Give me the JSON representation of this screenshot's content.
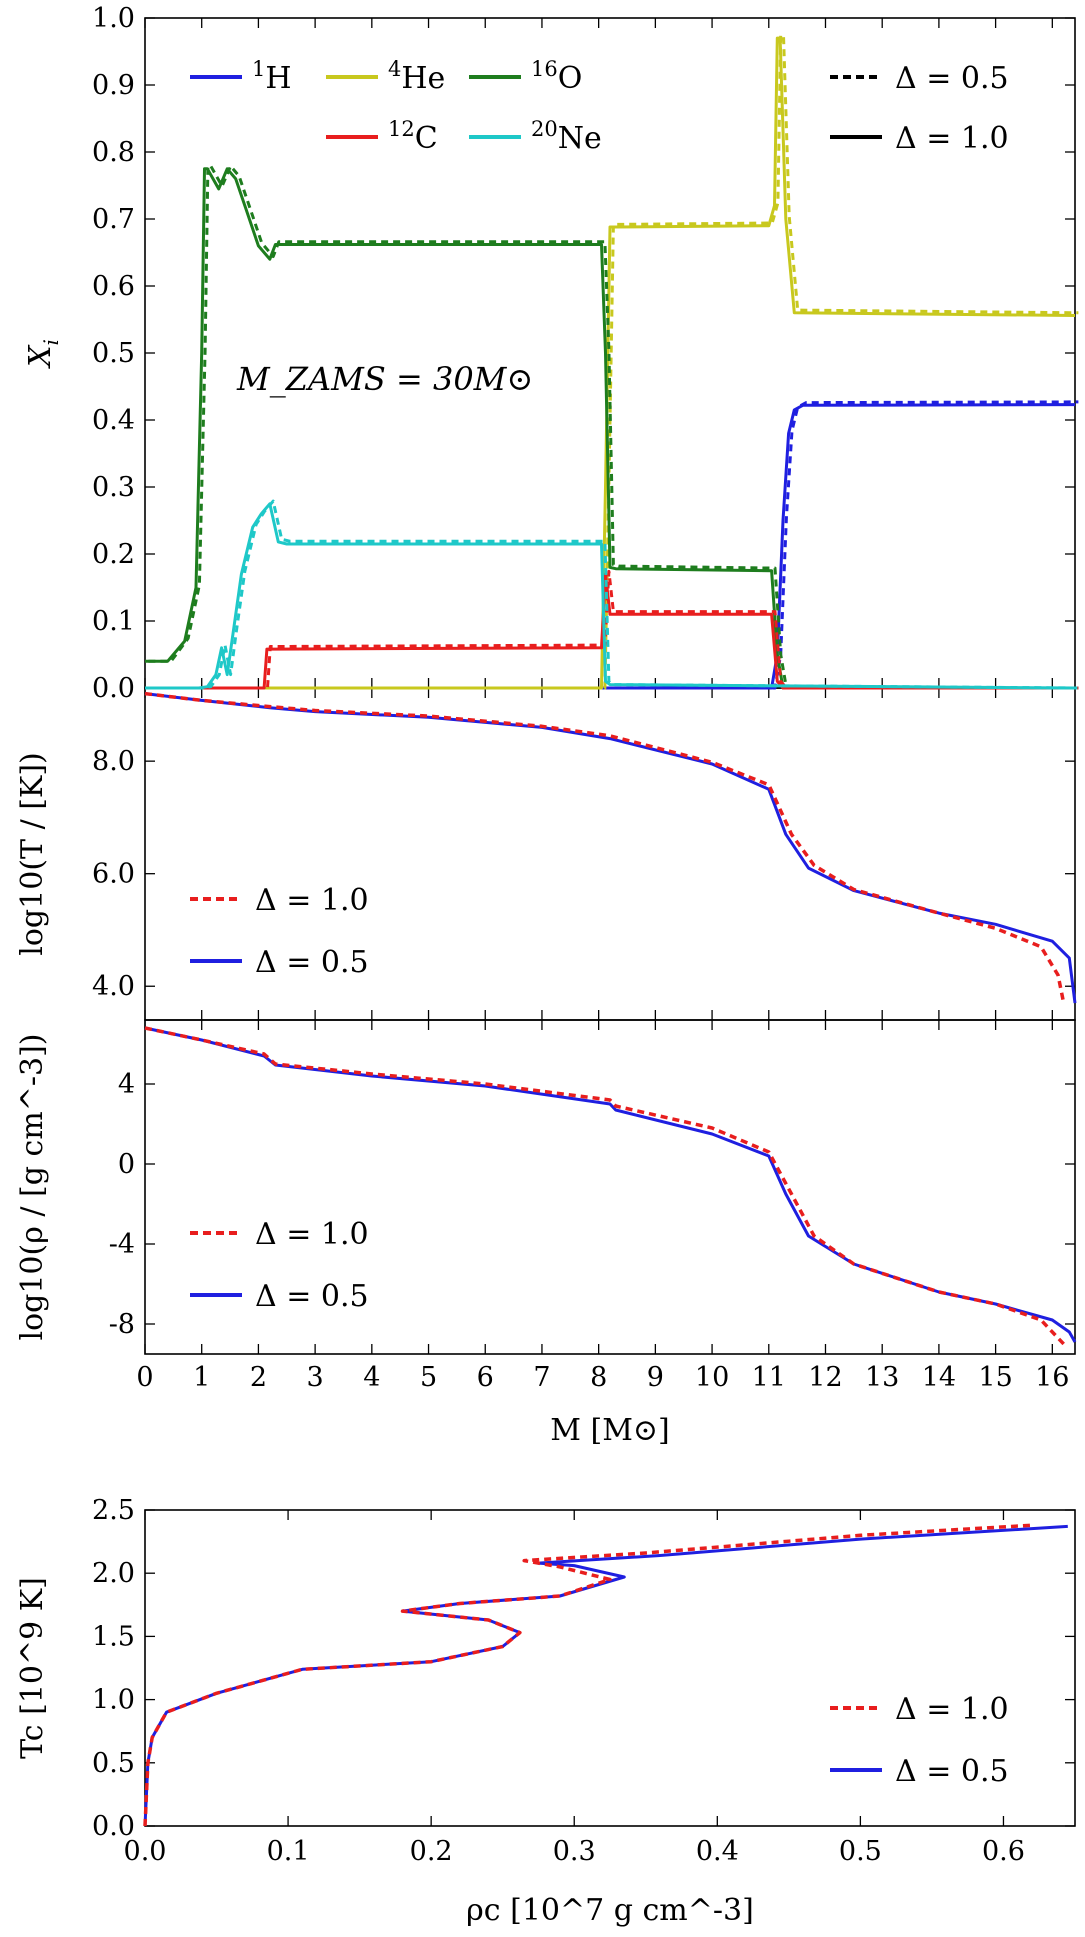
{
  "chart_data": [
    {
      "type": "line",
      "title": "",
      "xlabel": "M [M⊙]",
      "ylabel": "X_i",
      "xlim": [
        0,
        16.4
      ],
      "ylim": [
        0.0,
        1.0
      ],
      "yticks": [
        "0.0",
        "0.1",
        "0.2",
        "0.3",
        "0.4",
        "0.5",
        "0.6",
        "0.7",
        "0.8",
        "0.9",
        "1.0"
      ],
      "annotation": "M_ZAMS = 30M⊙",
      "legend_species": [
        {
          "sup": "1",
          "name": "H",
          "color": "#1f1fe0"
        },
        {
          "sup": "4",
          "name": "He",
          "color": "#c8c81e"
        },
        {
          "sup": "16",
          "name": "O",
          "color": "#1e7d1e"
        },
        {
          "sup": "12",
          "name": "C",
          "color": "#e81e1e"
        },
        {
          "sup": "20",
          "name": "Ne",
          "color": "#1ec8c8"
        }
      ],
      "legend_styles": [
        {
          "label": "Δ = 0.5",
          "style": "dashed",
          "color": "#000000"
        },
        {
          "label": "Δ = 1.0",
          "style": "solid",
          "color": "#000000"
        }
      ],
      "series": [
        {
          "name": "1H",
          "color": "#1f1fe0",
          "x": [
            0,
            11.05,
            11.15,
            11.25,
            11.35,
            11.45,
            11.6,
            16.4
          ],
          "y": [
            0,
            0,
            0.05,
            0.25,
            0.38,
            0.415,
            0.422,
            0.423
          ]
        },
        {
          "name": "4He",
          "color": "#c8c81e",
          "x": [
            0,
            8.05,
            8.12,
            8.2,
            8.3,
            11.0,
            11.1,
            11.15,
            11.2,
            11.3,
            11.45,
            16.4
          ],
          "y": [
            0,
            0,
            0.3,
            0.688,
            0.688,
            0.69,
            0.72,
            0.97,
            0.97,
            0.7,
            0.56,
            0.556
          ]
        },
        {
          "name": "16O",
          "color": "#1e7d1e",
          "x": [
            0,
            0.4,
            0.7,
            0.9,
            1.0,
            1.05,
            1.1,
            1.3,
            1.45,
            1.6,
            1.8,
            2.0,
            2.2,
            2.3,
            2.5,
            8.05,
            8.12,
            8.2,
            8.3,
            11.05,
            11.15,
            11.25,
            16.4
          ],
          "y": [
            0.04,
            0.04,
            0.07,
            0.15,
            0.5,
            0.775,
            0.775,
            0.745,
            0.775,
            0.76,
            0.71,
            0.66,
            0.64,
            0.662,
            0.662,
            0.662,
            0.5,
            0.18,
            0.178,
            0.175,
            0.05,
            0,
            0
          ]
        },
        {
          "name": "12C",
          "color": "#e81e1e",
          "x": [
            0,
            2.1,
            2.15,
            2.3,
            8.05,
            8.12,
            8.2,
            8.3,
            11.05,
            11.15,
            11.25,
            16.4
          ],
          "y": [
            0,
            0,
            0.058,
            0.058,
            0.06,
            0.17,
            0.11,
            0.11,
            0.11,
            0.01,
            0,
            0
          ]
        },
        {
          "name": "20Ne",
          "color": "#1ec8c8",
          "x": [
            0,
            0.95,
            1.1,
            1.25,
            1.35,
            1.45,
            1.55,
            1.7,
            1.9,
            2.05,
            2.2,
            2.35,
            2.5,
            8.05,
            8.12,
            8.2,
            16.4
          ],
          "y": [
            0,
            0,
            0.002,
            0.02,
            0.06,
            0.02,
            0.08,
            0.17,
            0.24,
            0.26,
            0.275,
            0.218,
            0.215,
            0.215,
            0.01,
            0.005,
            0
          ]
        }
      ]
    },
    {
      "type": "line",
      "xlabel": "M [M⊙]",
      "ylabel": "log10(T / [K])",
      "xlim": [
        0,
        16.4
      ],
      "ylim": [
        3.4,
        9.3
      ],
      "yticks": [
        "4.0",
        "6.0",
        "8.0"
      ],
      "legend": [
        {
          "label": "Δ = 1.0",
          "style": "dashed",
          "color": "#e81e1e"
        },
        {
          "label": "Δ = 0.5",
          "style": "solid",
          "color": "#1f1fe0"
        }
      ],
      "series": [
        {
          "name": "Δ = 1.0",
          "color": "#e81e1e",
          "x": [
            0,
            1,
            2.2,
            3,
            5,
            7,
            8.2,
            10,
            11,
            11.4,
            11.8,
            12.5,
            14,
            15,
            15.8,
            16.1,
            16.2
          ],
          "y": [
            9.2,
            9.08,
            8.97,
            8.9,
            8.8,
            8.62,
            8.45,
            7.98,
            7.58,
            6.7,
            6.15,
            5.72,
            5.3,
            5.03,
            4.7,
            4.2,
            3.7
          ]
        },
        {
          "name": "Δ = 0.5",
          "color": "#1f1fe0",
          "x": [
            0,
            1,
            2.2,
            3,
            5,
            7,
            8.2,
            10,
            11,
            11.3,
            11.7,
            12.5,
            14,
            15,
            16,
            16.3,
            16.4
          ],
          "y": [
            9.2,
            9.08,
            8.95,
            8.88,
            8.78,
            8.6,
            8.4,
            7.95,
            7.5,
            6.7,
            6.1,
            5.7,
            5.3,
            5.1,
            4.8,
            4.5,
            3.7
          ]
        }
      ]
    },
    {
      "type": "line",
      "xlabel": "M [M⊙]",
      "ylabel": "log10(ρ / [g cm^-3])",
      "xlim": [
        0,
        16.4
      ],
      "ylim": [
        -9.5,
        7.2
      ],
      "yticks": [
        "-8",
        "-4",
        "0",
        "4"
      ],
      "xticks": [
        "0",
        "1",
        "2",
        "3",
        "4",
        "5",
        "6",
        "7",
        "8",
        "9",
        "10",
        "11",
        "12",
        "13",
        "14",
        "15",
        "16"
      ],
      "legend": [
        {
          "label": "Δ = 1.0",
          "style": "dashed",
          "color": "#e81e1e"
        },
        {
          "label": "Δ = 0.5",
          "style": "solid",
          "color": "#1f1fe0"
        }
      ],
      "series": [
        {
          "name": "Δ = 1.0",
          "color": "#e81e1e",
          "x": [
            0,
            1,
            2.1,
            2.3,
            4,
            6,
            8.2,
            8.3,
            10,
            11,
            11.4,
            11.8,
            12.5,
            14,
            15,
            15.8,
            16.2
          ],
          "y": [
            6.8,
            6.2,
            5.5,
            5.0,
            4.5,
            4.0,
            3.2,
            2.9,
            1.8,
            0.6,
            -1.5,
            -3.6,
            -5.0,
            -6.4,
            -7.0,
            -7.8,
            -9.0
          ]
        },
        {
          "name": "Δ = 0.5",
          "color": "#1f1fe0",
          "x": [
            0,
            1,
            2.1,
            2.3,
            4,
            6,
            8.2,
            8.3,
            10,
            11,
            11.3,
            11.7,
            12.5,
            14,
            15,
            16,
            16.3,
            16.4
          ],
          "y": [
            6.8,
            6.2,
            5.4,
            4.95,
            4.4,
            3.9,
            3.0,
            2.7,
            1.5,
            0.4,
            -1.5,
            -3.6,
            -5.0,
            -6.4,
            -7.0,
            -7.8,
            -8.4,
            -8.9
          ]
        }
      ]
    },
    {
      "type": "line",
      "xlabel": "ρc [10^7 g cm^-3]",
      "ylabel": "Tc [10^9 K]",
      "xlim": [
        0,
        0.65
      ],
      "ylim": [
        0.0,
        2.5
      ],
      "xticks": [
        "0.0",
        "0.1",
        "0.2",
        "0.3",
        "0.4",
        "0.5",
        "0.6"
      ],
      "yticks": [
        "0.0",
        "0.5",
        "1.0",
        "1.5",
        "2.0",
        "2.5"
      ],
      "legend": [
        {
          "label": "Δ = 1.0",
          "style": "dashed",
          "color": "#e81e1e"
        },
        {
          "label": "Δ = 0.5",
          "style": "solid",
          "color": "#1f1fe0"
        }
      ],
      "series": [
        {
          "name": "Δ = 1.0",
          "color": "#e81e1e",
          "x": [
            0,
            0.002,
            0.005,
            0.015,
            0.05,
            0.11,
            0.2,
            0.25,
            0.262,
            0.24,
            0.18,
            0.22,
            0.29,
            0.325,
            0.29,
            0.265,
            0.35,
            0.5,
            0.62
          ],
          "y": [
            0,
            0.5,
            0.7,
            0.9,
            1.05,
            1.24,
            1.3,
            1.42,
            1.53,
            1.63,
            1.7,
            1.76,
            1.82,
            1.95,
            2.05,
            2.1,
            2.16,
            2.3,
            2.38
          ]
        },
        {
          "name": "Δ = 0.5",
          "color": "#1f1fe0",
          "x": [
            0,
            0.002,
            0.005,
            0.015,
            0.05,
            0.11,
            0.2,
            0.25,
            0.262,
            0.24,
            0.18,
            0.22,
            0.29,
            0.335,
            0.3,
            0.275,
            0.36,
            0.5,
            0.645
          ],
          "y": [
            0,
            0.5,
            0.7,
            0.9,
            1.05,
            1.24,
            1.3,
            1.42,
            1.53,
            1.63,
            1.7,
            1.76,
            1.82,
            1.97,
            2.06,
            2.08,
            2.14,
            2.27,
            2.37
          ]
        }
      ]
    }
  ]
}
